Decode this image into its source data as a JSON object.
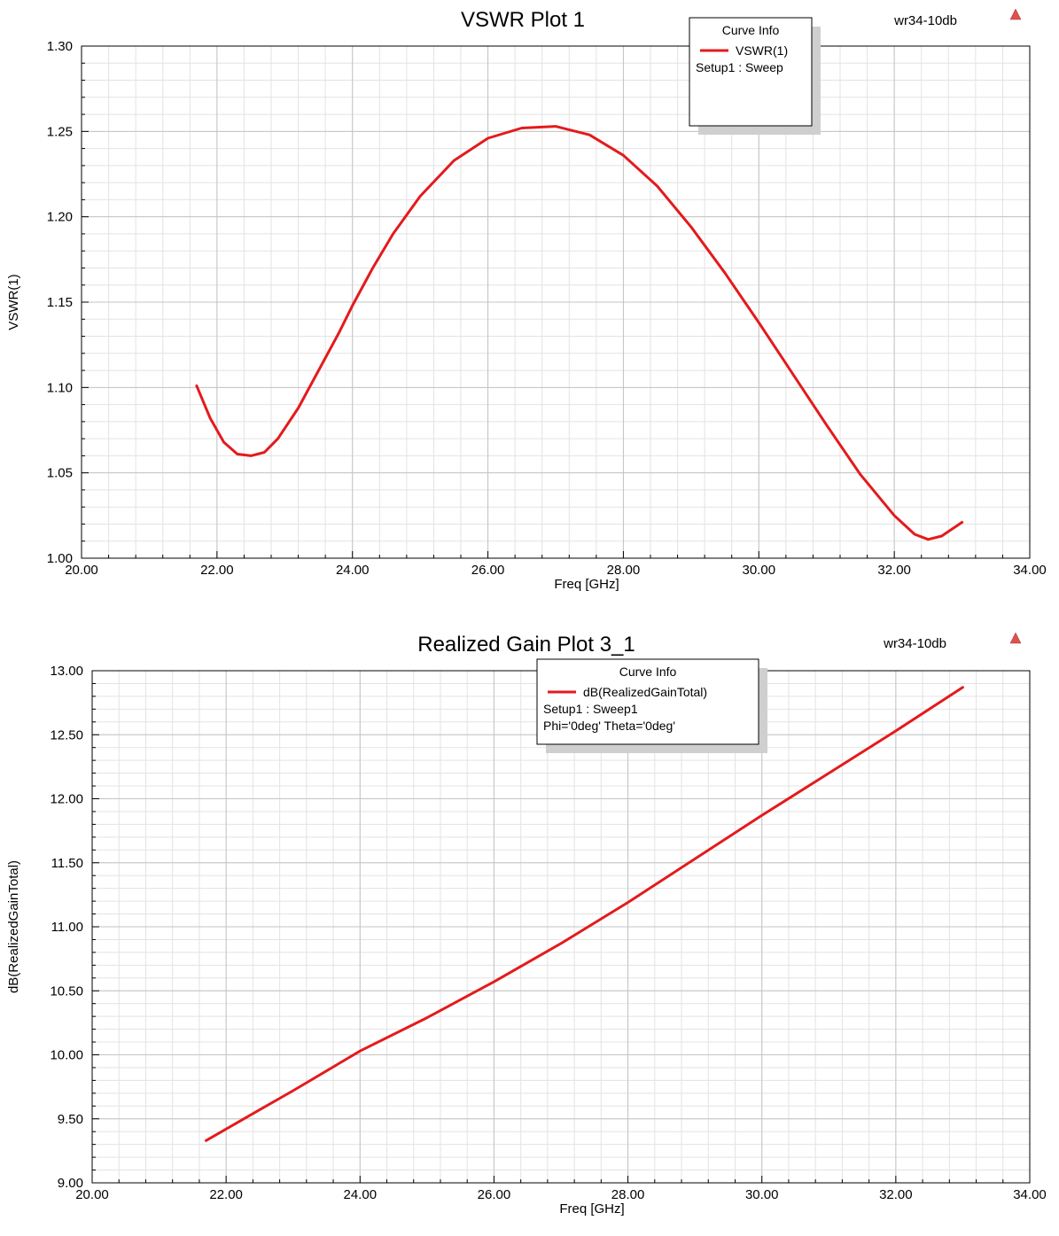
{
  "chart_data": [
    {
      "type": "line",
      "title": "VSWR Plot 1",
      "design_name": "wr34-10db",
      "xlabel": "Freq [GHz]",
      "ylabel": "VSWR(1)",
      "xlim": [
        20,
        34
      ],
      "ylim": [
        1.0,
        1.3
      ],
      "x_ticks": [
        "20.00",
        "22.00",
        "24.00",
        "26.00",
        "28.00",
        "30.00",
        "32.00",
        "34.00"
      ],
      "y_ticks": [
        "1.00",
        "1.05",
        "1.10",
        "1.15",
        "1.20",
        "1.25",
        "1.30"
      ],
      "grid": true,
      "legend": {
        "placement": "top-center-right",
        "title": "Curve Info",
        "lines": [
          "VSWR(1)",
          "Setup1 : Sweep"
        ]
      },
      "series": [
        {
          "name": "VSWR(1)",
          "color": "#e41a1c",
          "x": [
            21.7,
            21.9,
            22.1,
            22.3,
            22.5,
            22.7,
            22.9,
            23.2,
            23.5,
            23.8,
            24.0,
            24.3,
            24.6,
            25.0,
            25.5,
            26.0,
            26.5,
            27.0,
            27.5,
            28.0,
            28.5,
            29.0,
            29.5,
            30.0,
            30.5,
            31.0,
            31.5,
            32.0,
            32.3,
            32.5,
            32.7,
            33.0
          ],
          "y": [
            1.101,
            1.082,
            1.068,
            1.061,
            1.06,
            1.062,
            1.07,
            1.088,
            1.11,
            1.132,
            1.148,
            1.17,
            1.19,
            1.212,
            1.233,
            1.246,
            1.252,
            1.253,
            1.248,
            1.236,
            1.218,
            1.194,
            1.167,
            1.138,
            1.108,
            1.078,
            1.049,
            1.025,
            1.014,
            1.011,
            1.013,
            1.021
          ]
        }
      ]
    },
    {
      "type": "line",
      "title": "Realized Gain Plot 3_1",
      "design_name": "wr34-10db",
      "xlabel": "Freq [GHz]",
      "ylabel": "dB(RealizedGainTotal)",
      "xlim": [
        20,
        34
      ],
      "ylim": [
        9.0,
        13.0
      ],
      "x_ticks": [
        "20.00",
        "22.00",
        "24.00",
        "26.00",
        "28.00",
        "30.00",
        "32.00",
        "34.00"
      ],
      "y_ticks": [
        "9.00",
        "9.50",
        "10.00",
        "10.50",
        "11.00",
        "11.50",
        "12.00",
        "12.50",
        "13.00"
      ],
      "grid": true,
      "legend": {
        "placement": "top-center",
        "title": "Curve Info",
        "lines": [
          "dB(RealizedGainTotal)",
          "Setup1 : Sweep1",
          "Phi='0deg' Theta='0deg'"
        ]
      },
      "series": [
        {
          "name": "dB(RealizedGainTotal)",
          "color": "#e41a1c",
          "x": [
            21.7,
            22.5,
            23.0,
            24.0,
            25.0,
            26.0,
            27.0,
            28.0,
            29.0,
            30.0,
            31.0,
            32.0,
            33.0
          ],
          "y": [
            9.33,
            9.57,
            9.72,
            10.03,
            10.29,
            10.57,
            10.87,
            11.19,
            11.53,
            11.87,
            12.2,
            12.53,
            12.87
          ]
        }
      ]
    }
  ]
}
